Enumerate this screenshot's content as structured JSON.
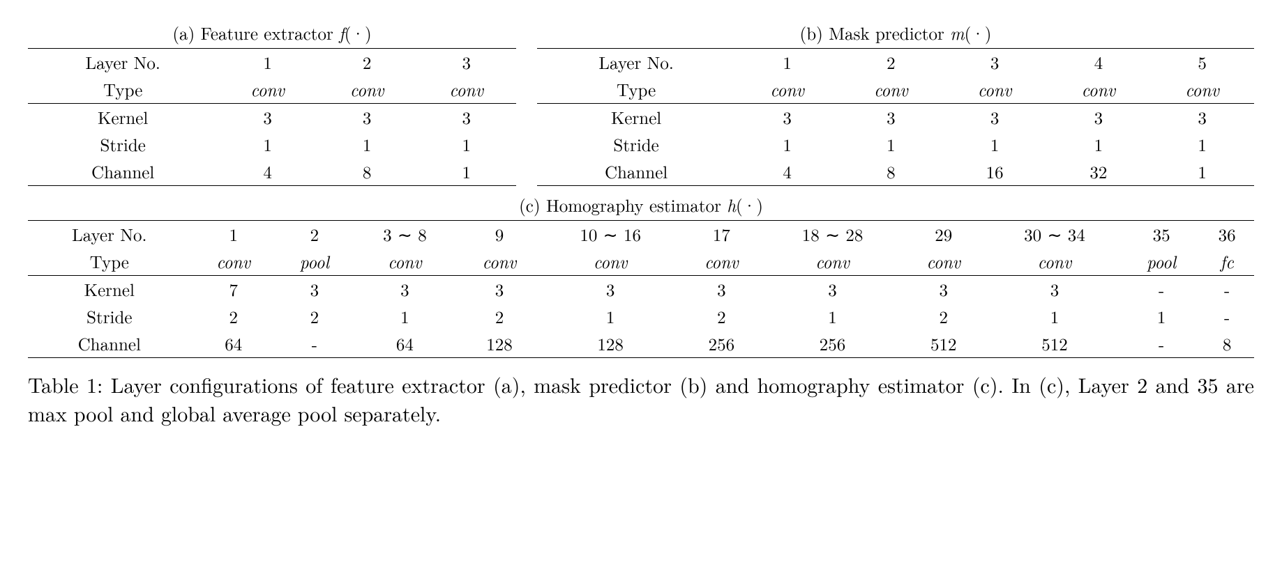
{
  "table_a": {
    "title_prefix": "(a) Feature extractor ",
    "title_fn": "f",
    "title_suffix": "(·)",
    "row_headers": [
      "Layer No.",
      "Type",
      "Kernel",
      "Stride",
      "Channel"
    ],
    "layer_no": [
      "1",
      "2",
      "3"
    ],
    "type": [
      "conv",
      "conv",
      "conv"
    ],
    "kernel": [
      "3",
      "3",
      "3"
    ],
    "stride": [
      "1",
      "1",
      "1"
    ],
    "channel": [
      "4",
      "8",
      "1"
    ]
  },
  "table_b": {
    "title_prefix": "(b) Mask predictor ",
    "title_fn": "m",
    "title_suffix": "(·)",
    "row_headers": [
      "Layer No.",
      "Type",
      "Kernel",
      "Stride",
      "Channel"
    ],
    "layer_no": [
      "1",
      "2",
      "3",
      "4",
      "5"
    ],
    "type": [
      "conv",
      "conv",
      "conv",
      "conv",
      "conv"
    ],
    "kernel": [
      "3",
      "3",
      "3",
      "3",
      "3"
    ],
    "stride": [
      "1",
      "1",
      "1",
      "1",
      "1"
    ],
    "channel": [
      "4",
      "8",
      "16",
      "32",
      "1"
    ]
  },
  "table_c": {
    "title_prefix": "(c) Homography estimator ",
    "title_fn": "h",
    "title_suffix": "(·)",
    "row_headers": [
      "Layer No.",
      "Type",
      "Kernel",
      "Stride",
      "Channel"
    ],
    "layer_no": [
      "1",
      "2",
      "3 ∼ 8",
      "9",
      "10 ∼ 16",
      "17",
      "18 ∼ 28",
      "29",
      "30 ∼ 34",
      "35",
      "36"
    ],
    "type": [
      "conv",
      "pool",
      "conv",
      "conv",
      "conv",
      "conv",
      "conv",
      "conv",
      "conv",
      "pool",
      "fc"
    ],
    "kernel": [
      "7",
      "3",
      "3",
      "3",
      "3",
      "3",
      "3",
      "3",
      "3",
      "-",
      "-"
    ],
    "stride": [
      "2",
      "2",
      "1",
      "2",
      "1",
      "2",
      "1",
      "2",
      "1",
      "1",
      "-"
    ],
    "channel": [
      "64",
      "-",
      "64",
      "128",
      "128",
      "256",
      "256",
      "512",
      "512",
      "-",
      "8"
    ]
  },
  "caption": "Table 1: Layer configurations of feature extractor (a), mask predictor (b) and homography estimator (c). In (c), Layer 2 and 35 are max pool and global average pool separately."
}
